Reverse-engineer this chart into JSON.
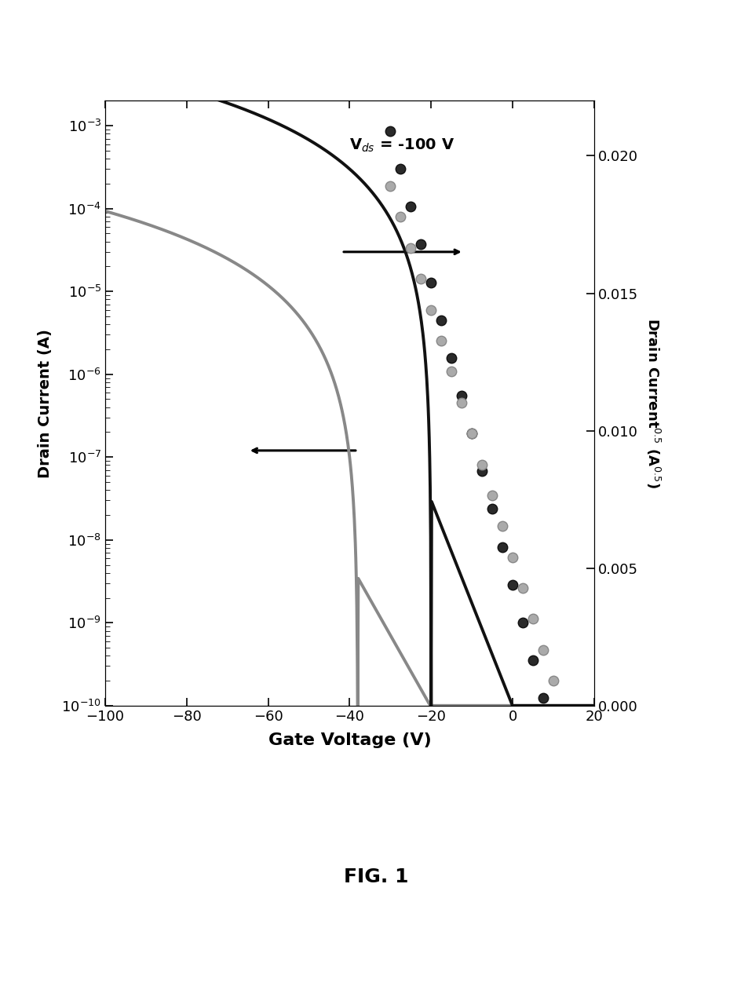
{
  "xlabel": "Gate Voltage (V)",
  "ylabel_left": "Drain Current (A)",
  "ylabel_right": "Drain Current$^{0.5}$ (A$^{0.5}$)",
  "xlim": [
    -100,
    20
  ],
  "ylim_log": [
    1e-10,
    0.002
  ],
  "ylim_right": [
    0.0,
    0.022
  ],
  "yticks_right": [
    0.0,
    0.005,
    0.01,
    0.015,
    0.02
  ],
  "xticks": [
    -100,
    -80,
    -60,
    -40,
    -20,
    0,
    20
  ],
  "fig_caption": "FIG. 1",
  "annotation": "V$_{ds}$ = -100 V",
  "line1_color": "#111111",
  "line2_color": "#888888",
  "dot1_color": "#1a1a1a",
  "dot2_color": "#999999"
}
